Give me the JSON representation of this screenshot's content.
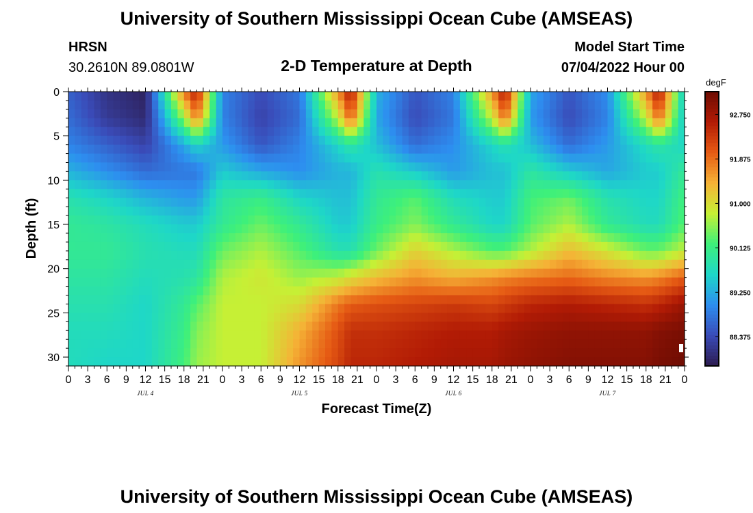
{
  "header": {
    "title": "University of Southern Mississippi Ocean Cube (AMSEAS)",
    "station": "HRSN",
    "coords": "30.2610N  89.0801W",
    "chart_title": "2-D Temperature at Depth",
    "model_start_label": "Model Start Time",
    "model_start_value": "07/04/2022 Hour 00"
  },
  "footer": {
    "title": "University of Southern Mississippi Ocean Cube (AMSEAS)"
  },
  "colors": {
    "colormap": [
      "#2c1b4f",
      "#3a4bb8",
      "#2d8ef0",
      "#1ed7c8",
      "#3ef07a",
      "#c6f035",
      "#f5b236",
      "#e65b14",
      "#b21b05",
      "#6e0c03"
    ]
  },
  "chart_data": {
    "type": "heatmap",
    "xlabel": "Forecast Time(Z)",
    "ylabel": "Depth (ft)",
    "x_range_hours": [
      0,
      96
    ],
    "y_range_ft": [
      0,
      31
    ],
    "x_tick_hours": [
      0,
      3,
      6,
      9,
      12,
      15,
      18,
      21,
      24,
      27,
      30,
      33,
      36,
      39,
      42,
      45,
      48,
      51,
      54,
      57,
      60,
      63,
      66,
      69,
      72,
      75,
      78,
      81,
      84,
      87,
      90,
      93,
      96
    ],
    "x_tick_labels": [
      "0",
      "3",
      "6",
      "9",
      "12",
      "15",
      "18",
      "21",
      "0",
      "3",
      "6",
      "9",
      "12",
      "15",
      "18",
      "21",
      "0",
      "3",
      "6",
      "9",
      "12",
      "15",
      "18",
      "21",
      "0",
      "3",
      "6",
      "9",
      "12",
      "15",
      "18",
      "21",
      "0"
    ],
    "y_ticks": [
      0,
      5,
      10,
      15,
      20,
      25,
      30
    ],
    "y_tick_labels": [
      "0",
      "5",
      "10",
      "15",
      "20",
      "25",
      "30"
    ],
    "date_labels": [
      {
        "label": "JUL 4",
        "hour": 12
      },
      {
        "label": "JUL 5",
        "hour": 36
      },
      {
        "label": "JUL 6",
        "hour": 60
      },
      {
        "label": "JUL 7",
        "hour": 84
      }
    ],
    "colorbar": {
      "unit": "degF",
      "min": 87.8,
      "max": 93.2,
      "ticks": [
        88.375,
        89.25,
        90.125,
        91.0,
        91.875,
        92.75
      ],
      "tick_labels": [
        "88.375",
        "89.250",
        "90.125",
        "91.000",
        "91.875",
        "92.750"
      ]
    },
    "hours": [
      0,
      6,
      12,
      18,
      20,
      24,
      30,
      36,
      42,
      44,
      48,
      54,
      60,
      66,
      68,
      72,
      78,
      84,
      90,
      92,
      96
    ],
    "depths_ft": [
      0,
      3,
      6,
      9,
      12,
      15,
      18,
      21,
      24,
      27,
      31
    ],
    "temperature_degF": [
      [
        88.6,
        88.1,
        87.9,
        91.8,
        92.6,
        88.9,
        88.4,
        88.8,
        91.6,
        92.7,
        89.3,
        88.5,
        88.9,
        91.6,
        92.7,
        89.2,
        88.5,
        89.0,
        91.6,
        92.7,
        89.4
      ],
      [
        88.7,
        88.2,
        88.0,
        90.6,
        91.8,
        88.9,
        88.3,
        88.7,
        90.8,
        92.0,
        89.2,
        88.4,
        88.8,
        90.8,
        91.9,
        89.1,
        88.4,
        88.9,
        90.8,
        91.9,
        89.4
      ],
      [
        88.9,
        88.6,
        88.3,
        89.2,
        89.6,
        89.1,
        88.5,
        88.9,
        89.6,
        89.9,
        89.4,
        88.7,
        89.0,
        89.6,
        89.8,
        89.4,
        88.7,
        89.1,
        89.7,
        89.9,
        89.6
      ],
      [
        89.3,
        89.0,
        88.7,
        88.8,
        88.8,
        89.5,
        89.2,
        89.0,
        89.3,
        89.3,
        89.8,
        89.5,
        89.1,
        89.4,
        89.4,
        89.9,
        89.5,
        89.2,
        89.5,
        89.5,
        90.0
      ],
      [
        89.8,
        89.6,
        89.3,
        89.1,
        89.1,
        89.9,
        90.1,
        89.6,
        89.4,
        89.4,
        90.0,
        90.3,
        89.7,
        89.5,
        89.5,
        90.2,
        90.4,
        89.8,
        89.6,
        89.6,
        90.2
      ],
      [
        90.0,
        89.9,
        89.7,
        89.5,
        89.5,
        90.0,
        90.4,
        90.0,
        89.5,
        89.5,
        90.1,
        90.5,
        90.0,
        89.6,
        89.6,
        90.3,
        90.7,
        90.0,
        89.7,
        89.7,
        90.3
      ],
      [
        90.0,
        90.0,
        89.8,
        89.7,
        89.7,
        90.4,
        90.7,
        90.3,
        89.8,
        89.8,
        90.4,
        91.1,
        90.7,
        90.3,
        90.3,
        90.7,
        91.3,
        90.9,
        90.4,
        90.4,
        90.8
      ],
      [
        89.9,
        89.9,
        89.7,
        89.8,
        89.9,
        90.7,
        90.9,
        90.6,
        90.8,
        91.0,
        91.3,
        91.6,
        91.4,
        91.6,
        91.7,
        91.8,
        91.9,
        91.7,
        91.6,
        91.7,
        92.0
      ],
      [
        89.8,
        89.8,
        89.6,
        90.0,
        90.3,
        90.8,
        90.8,
        91.0,
        91.8,
        92.0,
        92.1,
        92.2,
        92.3,
        92.2,
        92.3,
        92.5,
        92.6,
        92.5,
        92.4,
        92.5,
        92.8
      ],
      [
        89.7,
        89.7,
        89.6,
        90.1,
        90.5,
        90.8,
        90.8,
        91.4,
        92.1,
        92.4,
        92.4,
        92.5,
        92.6,
        92.6,
        92.7,
        92.8,
        92.9,
        92.9,
        92.9,
        93.0,
        93.1
      ],
      [
        89.7,
        89.6,
        89.6,
        90.2,
        90.6,
        90.8,
        90.8,
        91.6,
        92.2,
        92.5,
        92.5,
        92.6,
        92.7,
        92.7,
        92.8,
        92.9,
        93.0,
        93.0,
        93.0,
        93.1,
        93.2
      ]
    ]
  }
}
